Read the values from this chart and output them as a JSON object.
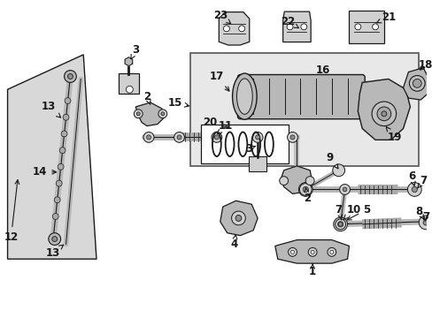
{
  "bg_color": "#ffffff",
  "line_color": "#1a1a1a",
  "fill_light": "#d0d0d0",
  "fill_mid": "#b8b8b8",
  "fill_dark": "#909090",
  "box_bg": "#e0e0e0",
  "fig_width": 4.89,
  "fig_height": 3.6,
  "dpi": 100
}
